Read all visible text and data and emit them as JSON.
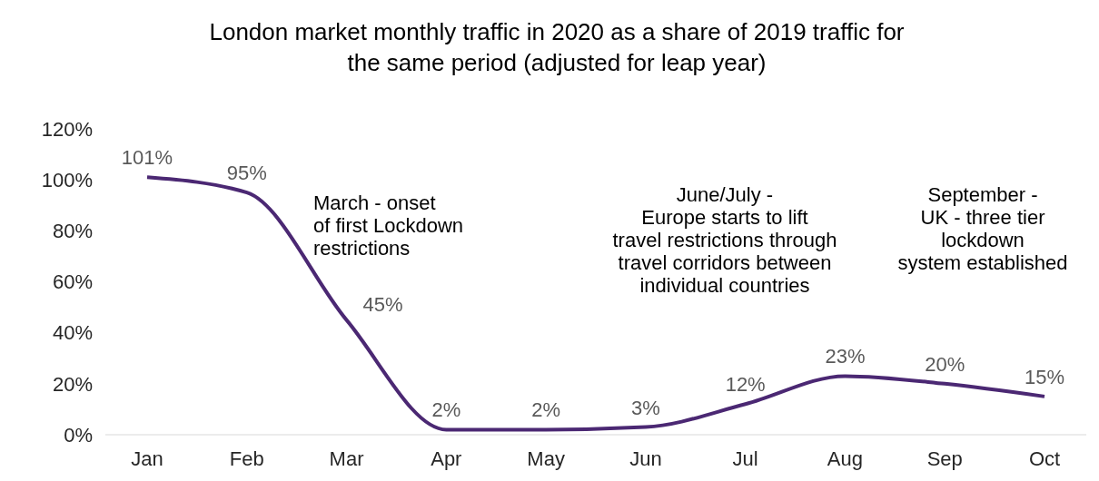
{
  "chart_data": {
    "type": "line",
    "title": "London market monthly traffic in 2020 as a share of 2019 traffic for\nthe same period (adjusted for leap year)",
    "categories": [
      "Jan",
      "Feb",
      "Mar",
      "Apr",
      "May",
      "Jun",
      "Jul",
      "Aug",
      "Sep",
      "Oct"
    ],
    "series": [
      {
        "color": "#4b2873",
        "values": [
          101,
          95,
          45,
          2,
          2,
          3,
          12,
          23,
          20,
          15
        ],
        "value_labels": [
          "101%",
          "95%",
          "45%",
          "2%",
          "2%",
          "3%",
          "12%",
          "23%",
          "20%",
          "15%"
        ]
      }
    ],
    "ylim": [
      0,
      120
    ],
    "yticks": [
      {
        "value": 0,
        "label": "0%"
      },
      {
        "value": 20,
        "label": "20%"
      },
      {
        "value": 40,
        "label": "40%"
      },
      {
        "value": 60,
        "label": "60%"
      },
      {
        "value": 80,
        "label": "80%"
      },
      {
        "value": 100,
        "label": "100%"
      },
      {
        "value": 120,
        "label": "120%"
      }
    ],
    "annotations": [
      "March - onset\nof first Lockdown\nrestrictions",
      "June/July -\nEurope starts to lift\ntravel restrictions through\ntravel corridors between\nindividual countries",
      "September -\nUK - three tier\nlockdown\nsystem established"
    ],
    "grid": false,
    "legend": false,
    "marker": "none",
    "line_style": "solid"
  }
}
